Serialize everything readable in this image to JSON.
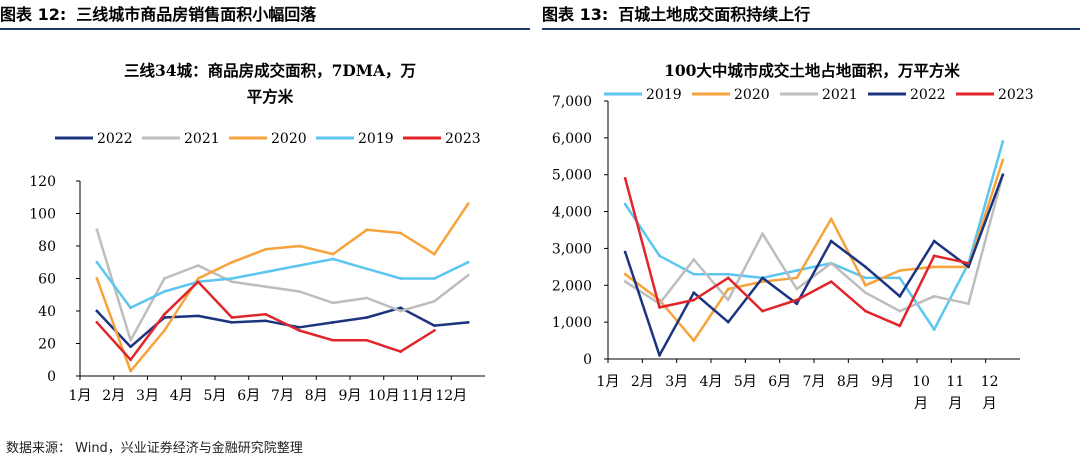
{
  "source_note": "数据来源： Wind，兴业证券经济与金融研究院整理",
  "chart_data": [
    {
      "type": "line",
      "figure_number": "图表 12:",
      "figure_title": "三线城市商品房销售面积小幅回落",
      "title_lines": [
        "三线34城：商品房成交面积，7DMA，万",
        "平方米"
      ],
      "x": [
        "1月",
        "2月",
        "3月",
        "4月",
        "5月",
        "6月",
        "7月",
        "8月",
        "9月",
        "10月",
        "11月",
        "12月"
      ],
      "x_ticks": [
        "1月",
        "2月",
        "3月",
        "4月",
        "5月",
        "6月",
        "7月",
        "8月",
        "9月",
        "10月",
        "11月",
        "12月"
      ],
      "ylim": [
        0,
        120
      ],
      "y_ticks": [
        "0",
        "20",
        "40",
        "60",
        "80",
        "100",
        "120"
      ],
      "legend_position": "top",
      "grid": false,
      "series": [
        {
          "name": "2022",
          "color": "#1c3480",
          "values": [
            40,
            18,
            36,
            37,
            33,
            34,
            30,
            33,
            36,
            42,
            31,
            33
          ]
        },
        {
          "name": "2021",
          "color": "#bdbdbd",
          "values": [
            90,
            22,
            60,
            68,
            58,
            55,
            52,
            45,
            48,
            40,
            46,
            62
          ]
        },
        {
          "name": "2020",
          "color": "#f7a23b",
          "values": [
            60,
            3,
            28,
            60,
            70,
            78,
            80,
            75,
            90,
            88,
            75,
            106
          ]
        },
        {
          "name": "2019",
          "color": "#5bc6ef",
          "values": [
            70,
            42,
            52,
            58,
            60,
            64,
            68,
            72,
            66,
            60,
            60,
            70
          ]
        },
        {
          "name": "2023",
          "color": "#e0262b",
          "values": [
            33,
            10,
            38,
            58,
            36,
            38,
            28,
            22,
            22,
            15,
            28,
            null
          ]
        }
      ]
    },
    {
      "type": "line",
      "figure_number": "图表 13:",
      "figure_title": "百城土地成交面积持续上行",
      "title_lines": [
        "100大中城市成交土地占地面积，万平方米"
      ],
      "x": [
        "1月",
        "2月",
        "3月",
        "4月",
        "5月",
        "6月",
        "7月",
        "8月",
        "9月",
        "10月",
        "11月",
        "12月"
      ],
      "x_ticks": [
        "1月",
        "2月",
        "3月",
        "4月",
        "5月",
        "6月",
        "7月",
        "8月",
        "9月",
        "10\n月",
        "11\n月",
        "12\n月"
      ],
      "ylim": [
        0,
        7000
      ],
      "y_ticks": [
        "0",
        "1,000",
        "2,000",
        "3,000",
        "4,000",
        "5,000",
        "6,000",
        "7,000"
      ],
      "legend_position": "top",
      "grid": false,
      "series": [
        {
          "name": "2019",
          "color": "#5bc6ef",
          "values": [
            4200,
            2800,
            2300,
            2300,
            2200,
            2400,
            2600,
            2200,
            2200,
            800,
            2600,
            5900
          ]
        },
        {
          "name": "2020",
          "color": "#f7a23b",
          "values": [
            2300,
            1600,
            500,
            1900,
            2100,
            2200,
            3800,
            2000,
            2400,
            2500,
            2500,
            5400
          ]
        },
        {
          "name": "2021",
          "color": "#bdbdbd",
          "values": [
            2100,
            1500,
            2700,
            1600,
            3400,
            1900,
            2600,
            1800,
            1300,
            1700,
            1500,
            5000
          ]
        },
        {
          "name": "2022",
          "color": "#1c3480",
          "values": [
            2900,
            100,
            1800,
            1000,
            2200,
            1500,
            3200,
            2500,
            1700,
            3200,
            2500,
            5000
          ]
        },
        {
          "name": "2023",
          "color": "#e0262b",
          "values": [
            4900,
            1400,
            1600,
            2200,
            1300,
            1600,
            2100,
            1300,
            900,
            2800,
            2600,
            null
          ]
        }
      ]
    }
  ]
}
